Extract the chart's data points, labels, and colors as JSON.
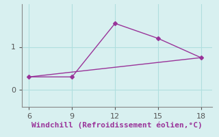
{
  "xlabel": "Windchill (Refroidissement éolien,°C)",
  "ylabel": "",
  "background_color": "#d8f0f0",
  "grid_color": "#b0dede",
  "line_color": "#993399",
  "line1_x": [
    6,
    9,
    12,
    15,
    18
  ],
  "line1_y": [
    0.3,
    0.3,
    1.55,
    1.2,
    0.75
  ],
  "line2_x": [
    6,
    18
  ],
  "line2_y": [
    0.3,
    0.75
  ],
  "xlim": [
    5.5,
    18.8
  ],
  "ylim": [
    -0.4,
    2.0
  ],
  "xticks": [
    6,
    9,
    12,
    15,
    18
  ],
  "yticks": [
    0,
    1
  ],
  "tick_color": "#555555",
  "axis_color": "#888888",
  "font_color": "#993399",
  "xlabel_fontsize": 8,
  "tick_fontsize": 8,
  "marker": "D",
  "markersize": 3,
  "linewidth": 1.0,
  "spine_color": "#888888"
}
